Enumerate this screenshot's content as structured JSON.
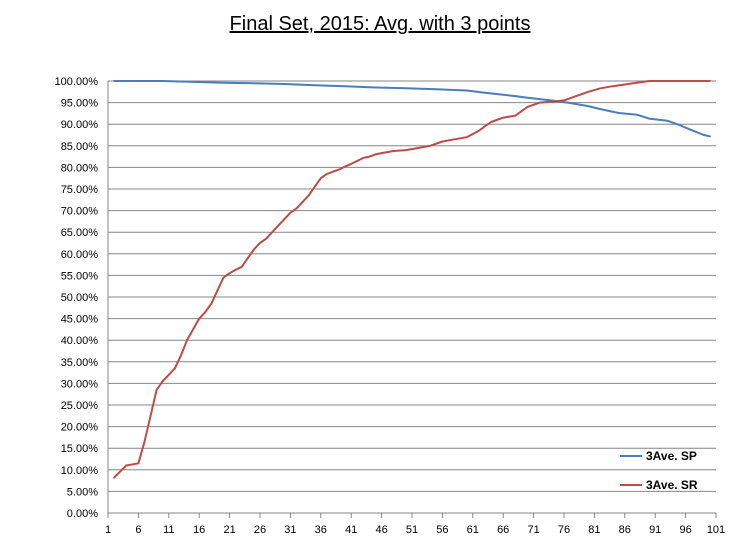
{
  "chart_data": {
    "type": "line",
    "title": "Final Set, 2015: Avg. with 3 points",
    "xlabel": "",
    "ylabel": "",
    "xlim": [
      1,
      101
    ],
    "ylim": [
      0,
      100
    ],
    "x_ticks": [
      1,
      6,
      11,
      16,
      21,
      26,
      31,
      36,
      41,
      46,
      51,
      56,
      61,
      66,
      71,
      76,
      81,
      86,
      91,
      96,
      101
    ],
    "y_ticks": [
      "0.00%",
      "5.00%",
      "10.00%",
      "15.00%",
      "20.00%",
      "25.00%",
      "30.00%",
      "35.00%",
      "40.00%",
      "45.00%",
      "50.00%",
      "55.00%",
      "60.00%",
      "65.00%",
      "70.00%",
      "75.00%",
      "80.00%",
      "85.00%",
      "90.00%",
      "95.00%",
      "100.00%"
    ],
    "grid": true,
    "legend_position": "bottom-right",
    "series": [
      {
        "name": "3Ave. SP",
        "color": "#4a7ebb",
        "x": [
          2,
          5,
          10,
          15,
          20,
          25,
          30,
          35,
          40,
          45,
          50,
          55,
          60,
          63,
          66,
          68,
          70,
          72,
          75,
          77,
          80,
          82,
          85,
          88,
          90,
          93,
          95,
          97,
          99,
          100
        ],
        "y": [
          100,
          100,
          100,
          99.8,
          99.6,
          99.5,
          99.3,
          99.0,
          98.8,
          98.5,
          98.3,
          98.1,
          97.8,
          97.3,
          96.8,
          96.5,
          96.1,
          95.8,
          95.3,
          94.9,
          94.2,
          93.5,
          92.6,
          92.2,
          91.3,
          90.8,
          89.8,
          88.6,
          87.5,
          87.2
        ]
      },
      {
        "name": "3Ave. SR",
        "color": "#be4b48",
        "x": [
          2,
          4,
          6,
          7,
          8,
          9,
          10,
          11,
          12,
          13,
          14,
          15,
          16,
          17,
          18,
          19,
          20,
          21,
          22,
          23,
          24,
          25,
          26,
          27,
          28,
          29,
          30,
          31,
          32,
          33,
          34,
          35,
          36,
          37,
          38,
          39,
          40,
          41,
          42,
          43,
          44,
          45,
          46,
          48,
          50,
          52,
          54,
          56,
          58,
          60,
          62,
          64,
          66,
          68,
          70,
          72,
          74,
          76,
          78,
          80,
          82,
          84,
          86,
          88,
          90,
          92,
          95,
          98,
          100
        ],
        "y": [
          8.2,
          11.0,
          11.5,
          16.5,
          22.5,
          28.5,
          30.5,
          32.0,
          33.5,
          36.5,
          40.0,
          42.5,
          45.0,
          46.5,
          48.5,
          51.5,
          54.5,
          55.5,
          56.3,
          57.0,
          59.0,
          61.0,
          62.5,
          63.5,
          65.0,
          66.5,
          68.0,
          69.5,
          70.5,
          72.0,
          73.5,
          75.5,
          77.5,
          78.5,
          79.0,
          79.5,
          80.2,
          80.8,
          81.5,
          82.2,
          82.5,
          83.0,
          83.3,
          83.8,
          84.0,
          84.5,
          85.0,
          86.0,
          86.5,
          87.0,
          88.5,
          90.5,
          91.5,
          92.0,
          94.0,
          95.0,
          95.2,
          95.5,
          96.5,
          97.5,
          98.3,
          98.8,
          99.2,
          99.6,
          100,
          100,
          100,
          100,
          100
        ]
      }
    ]
  }
}
